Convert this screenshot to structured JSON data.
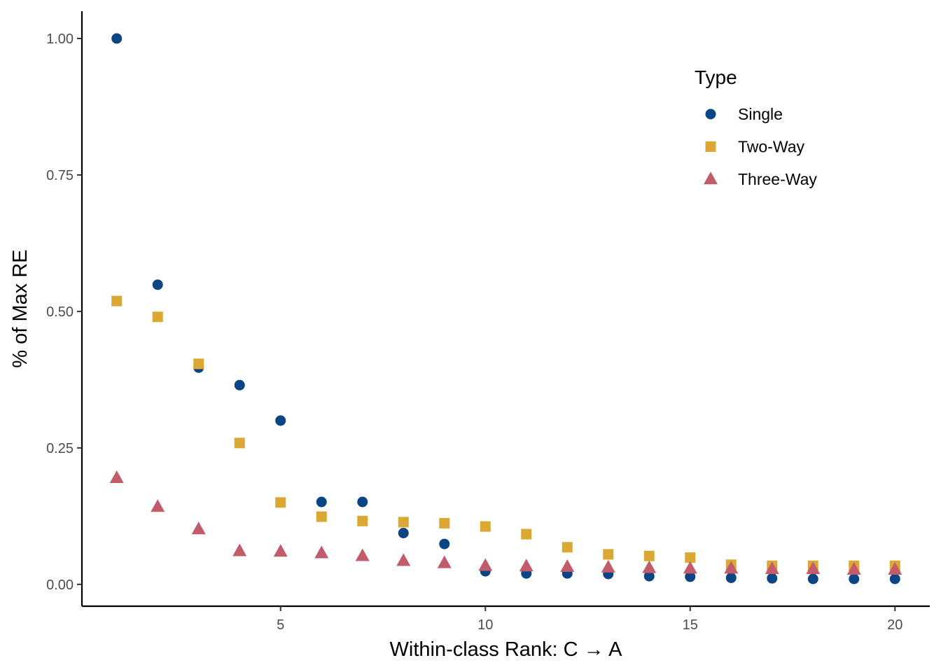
{
  "chart_data": {
    "type": "scatter",
    "xlabel": "Within-class Rank: C → A",
    "ylabel": "% of Max RE",
    "xlim": [
      0.15,
      20.85
    ],
    "ylim": [
      -0.04,
      1.05
    ],
    "xticks": [
      5,
      10,
      15,
      20
    ],
    "xtick_labels": [
      "5",
      "10",
      "15",
      "20"
    ],
    "yticks": [
      0,
      0.25,
      0.5,
      0.75,
      1.0
    ],
    "ytick_labels": [
      "0.00",
      "0.25",
      "0.50",
      "0.75",
      "1.00"
    ],
    "grid": false,
    "legend": {
      "title": "Type",
      "position": "top-right"
    },
    "x": [
      1,
      2,
      3,
      4,
      5,
      6,
      7,
      8,
      9,
      10,
      11,
      12,
      13,
      14,
      15,
      16,
      17,
      18,
      19,
      20
    ],
    "series": [
      {
        "name": "Single",
        "shape": "circle",
        "color": "#0b4584",
        "values": [
          1.0,
          0.549,
          0.397,
          0.365,
          0.3,
          0.151,
          0.151,
          0.094,
          0.074,
          0.024,
          0.02,
          0.02,
          0.019,
          0.015,
          0.014,
          0.012,
          0.011,
          0.01,
          0.01,
          0.01
        ]
      },
      {
        "name": "Two-Way",
        "shape": "square",
        "color": "#dba933",
        "values": [
          0.519,
          0.49,
          0.404,
          0.259,
          0.15,
          0.124,
          0.116,
          0.114,
          0.112,
          0.106,
          0.092,
          0.068,
          0.055,
          0.052,
          0.049,
          0.036,
          0.034,
          0.034,
          0.034,
          0.034
        ]
      },
      {
        "name": "Three-Way",
        "shape": "triangle",
        "color": "#c25b6a",
        "values": [
          0.195,
          0.142,
          0.101,
          0.061,
          0.06,
          0.057,
          0.052,
          0.043,
          0.039,
          0.034,
          0.033,
          0.032,
          0.031,
          0.03,
          0.029,
          0.029,
          0.028,
          0.028,
          0.027,
          0.027
        ]
      }
    ]
  }
}
